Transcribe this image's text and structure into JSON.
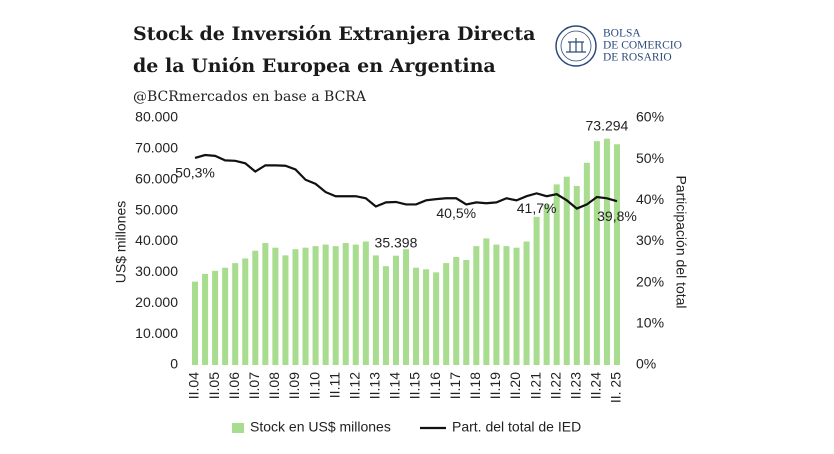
{
  "chart_data": {
    "type": "bar-line",
    "title": [
      "Stock de Inversión Extranjera Directa",
      "de la Unión Europea en Argentina"
    ],
    "subtitle": "@BCRmercados en base a BCRA",
    "logo": [
      "BOLSA",
      "DE COMERCIO",
      "DE ROSARIO"
    ],
    "y_label": "US$ millones",
    "y2_label": "Participación del total",
    "categories": [
      "II.04",
      null,
      "II.05",
      null,
      "II.06",
      null,
      "II.07",
      null,
      "II.08",
      null,
      "II.09",
      null,
      "II.10",
      null,
      "II.11",
      null,
      "II.12",
      null,
      "II.13",
      null,
      "II.14",
      null,
      "II.15",
      null,
      "II.16",
      null,
      "II.17",
      null,
      "II.18",
      null,
      "II.19",
      null,
      "II.20",
      null,
      "II.21",
      null,
      "II.22",
      null,
      "II.23",
      null,
      "II.24",
      null,
      "II. 25"
    ],
    "series": [
      {
        "name": "Stock en US$ millones",
        "color": "#a8dc8e",
        "axis": "y",
        "values": [
          27000,
          29500,
          30500,
          31500,
          33000,
          34500,
          37000,
          39500,
          38000,
          35500,
          37500,
          38000,
          38500,
          39000,
          38500,
          39500,
          39000,
          40000,
          35500,
          32000,
          35398,
          37500,
          31500,
          31000,
          30000,
          33000,
          35000,
          34000,
          38500,
          41000,
          39000,
          38500,
          38000,
          40000,
          48000,
          52000,
          58500,
          61000,
          58000,
          65500,
          72500,
          73294,
          71500
        ],
        "value_labels": [
          null,
          null,
          null,
          null,
          null,
          null,
          null,
          null,
          null,
          null,
          null,
          null,
          null,
          null,
          null,
          null,
          null,
          null,
          null,
          null,
          "35.398",
          null,
          null,
          null,
          null,
          null,
          null,
          null,
          null,
          null,
          null,
          null,
          null,
          null,
          null,
          null,
          null,
          null,
          null,
          null,
          null,
          "73.294",
          null
        ]
      },
      {
        "name": "Part. del total de IED",
        "color": "#111111",
        "axis": "y2",
        "values": [
          50.3,
          51,
          50.8,
          49.7,
          49.6,
          49,
          47,
          48.5,
          48.5,
          48.4,
          47.5,
          45,
          44,
          42,
          41,
          41,
          41,
          40.5,
          38.5,
          39.5,
          39.6,
          39,
          39,
          40,
          40.3,
          40.5,
          40.5,
          39,
          39.5,
          39.3,
          39.5,
          40.5,
          40,
          41,
          41.7,
          41,
          41.5,
          40,
          38,
          39,
          40.8,
          40.5,
          39.8
        ],
        "value_labels": [
          "50,3%",
          null,
          null,
          null,
          null,
          null,
          null,
          null,
          null,
          null,
          null,
          null,
          null,
          null,
          null,
          null,
          null,
          null,
          null,
          null,
          null,
          null,
          null,
          null,
          null,
          null,
          "40,5%",
          null,
          null,
          null,
          null,
          null,
          null,
          null,
          "41,7%",
          null,
          null,
          null,
          null,
          null,
          null,
          null,
          "39,8%"
        ]
      }
    ],
    "ylim": [
      0,
      80000
    ],
    "yticks": [
      0,
      {
        "value": 10000,
        "label": "10.000"
      },
      {
        "value": 20000,
        "label": "20.000"
      },
      {
        "value": 30000,
        "label": "30.000"
      },
      {
        "value": 40000,
        "label": "40.000"
      },
      {
        "value": 50000,
        "label": "50.000"
      },
      {
        "value": 60000,
        "label": "60.000"
      },
      {
        "value": 70000,
        "label": "70.000"
      },
      {
        "value": 80000,
        "label": "80.000"
      }
    ],
    "y2lim": [
      0,
      60
    ],
    "y2ticks": [
      {
        "value": 0,
        "label": "0%"
      },
      {
        "value": 10,
        "label": "10%"
      },
      {
        "value": 20,
        "label": "20%"
      },
      {
        "value": 30,
        "label": "30%"
      },
      {
        "value": 40,
        "label": "40%"
      },
      {
        "value": 50,
        "label": "50%"
      },
      {
        "value": 60,
        "label": "60%"
      }
    ],
    "grid": false
  }
}
